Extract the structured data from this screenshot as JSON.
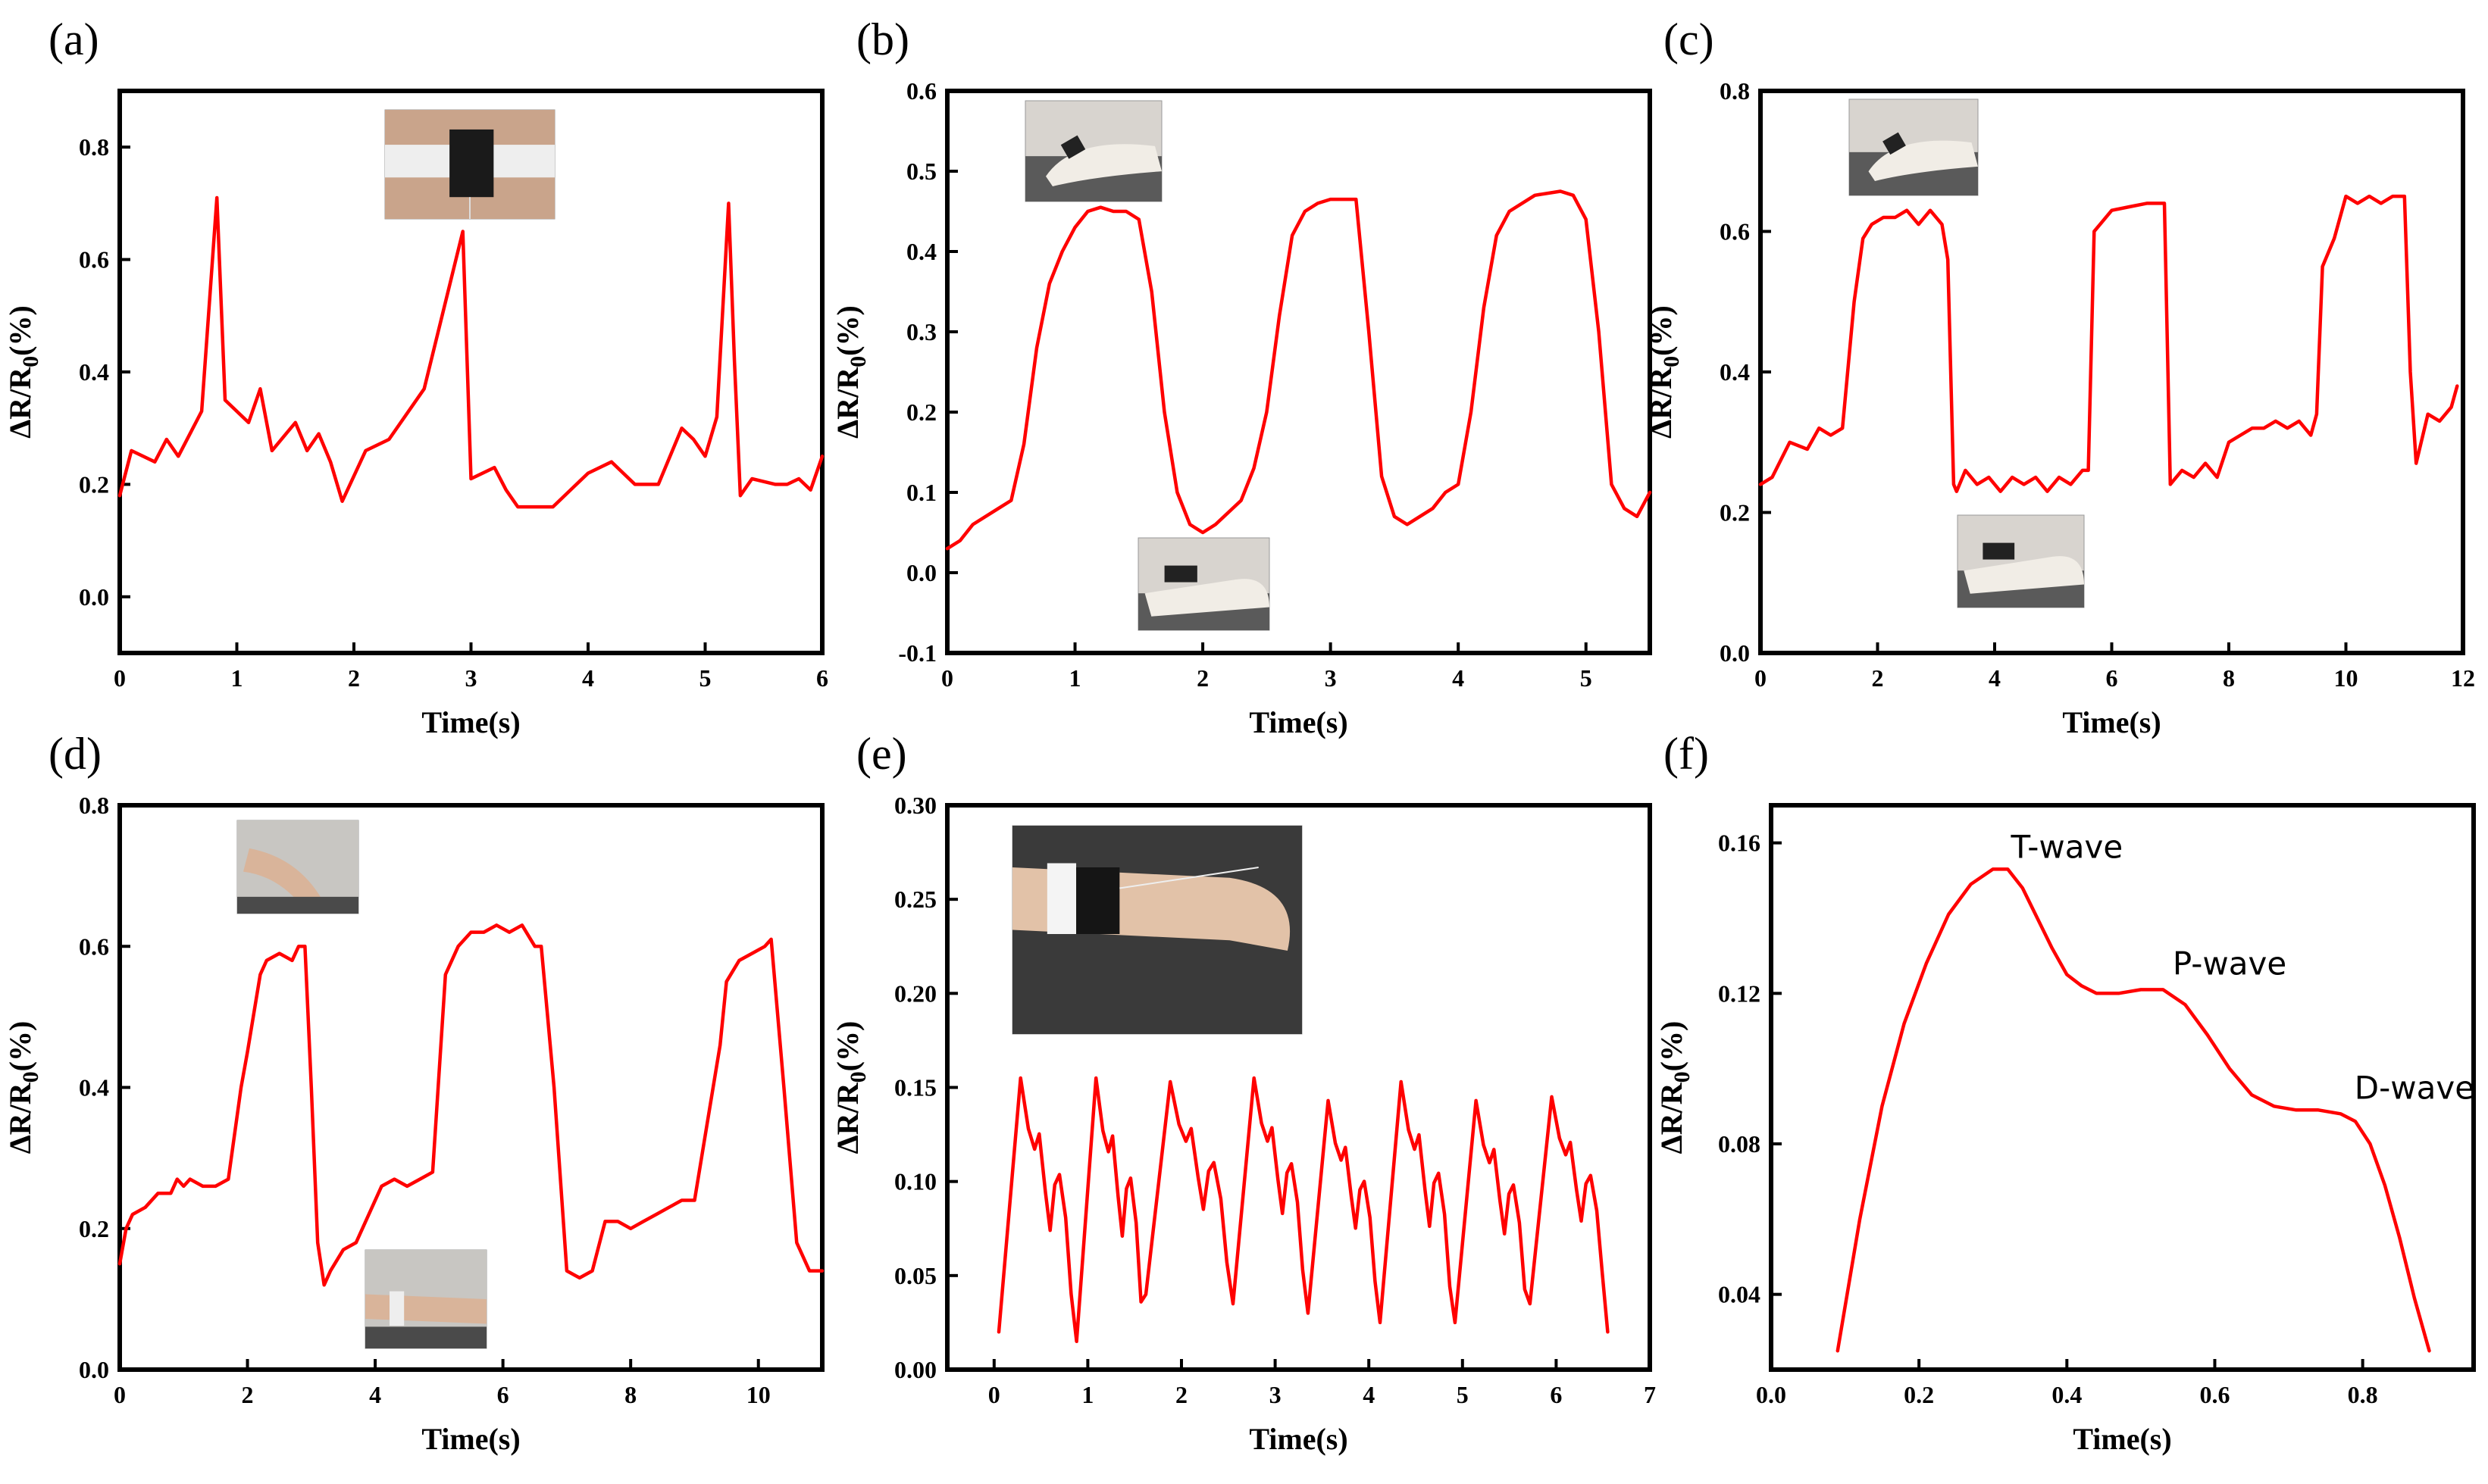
{
  "chart_data": [
    {
      "panel_label": "(a)",
      "type": "line",
      "xlabel": "Time(s)",
      "ylabel_main": "ΔR/R",
      "ylabel_sub": "0",
      "ylabel_unit": "(%)",
      "xlim": [
        0,
        6
      ],
      "ylim": [
        -0.1,
        0.9
      ],
      "xticks": [
        0,
        1,
        2,
        3,
        4,
        5,
        6
      ],
      "yticks": [
        0.0,
        0.2,
        0.4,
        0.6,
        0.8
      ],
      "ytick_labels": [
        "0.0",
        "0.2",
        "0.4",
        "0.6",
        "0.8"
      ],
      "line_color": "#ff0000",
      "inset_photos": [
        "chest-sensor-photo"
      ],
      "x": [
        0,
        0.1,
        0.3,
        0.4,
        0.5,
        0.7,
        0.83,
        0.9,
        1.1,
        1.2,
        1.3,
        1.5,
        1.6,
        1.7,
        1.8,
        1.9,
        2.1,
        2.3,
        2.6,
        2.93,
        3.0,
        3.2,
        3.3,
        3.4,
        3.7,
        4.0,
        4.2,
        4.4,
        4.6,
        4.8,
        4.9,
        5.0,
        5.1,
        5.2,
        5.25,
        5.3,
        5.4,
        5.6,
        5.7,
        5.8,
        5.9,
        6.0
      ],
      "y": [
        0.18,
        0.26,
        0.24,
        0.28,
        0.25,
        0.33,
        0.71,
        0.35,
        0.31,
        0.37,
        0.26,
        0.31,
        0.26,
        0.29,
        0.24,
        0.17,
        0.26,
        0.28,
        0.37,
        0.65,
        0.21,
        0.23,
        0.19,
        0.16,
        0.16,
        0.22,
        0.24,
        0.2,
        0.2,
        0.3,
        0.28,
        0.25,
        0.32,
        0.7,
        0.42,
        0.18,
        0.21,
        0.2,
        0.2,
        0.21,
        0.19,
        0.25
      ]
    },
    {
      "panel_label": "(b)",
      "type": "line",
      "xlabel": "Time(s)",
      "ylabel_main": "ΔR/R",
      "ylabel_sub": "0",
      "ylabel_unit": "(%)",
      "xlim": [
        0,
        5.5
      ],
      "ylim": [
        -0.1,
        0.6
      ],
      "xticks": [
        0,
        1,
        2,
        3,
        4,
        5
      ],
      "yticks": [
        -0.1,
        0.0,
        0.1,
        0.2,
        0.3,
        0.4,
        0.5,
        0.6
      ],
      "ytick_labels": [
        "-0.1",
        "0.0",
        "0.1",
        "0.2",
        "0.3",
        "0.4",
        "0.5",
        "0.6"
      ],
      "line_color": "#ff0000",
      "inset_photos": [
        "finger-bent-photo",
        "finger-straight-photo"
      ],
      "x": [
        0,
        0.1,
        0.2,
        0.4,
        0.5,
        0.6,
        0.7,
        0.8,
        0.9,
        1.0,
        1.1,
        1.2,
        1.3,
        1.4,
        1.5,
        1.6,
        1.7,
        1.8,
        1.9,
        2.0,
        2.1,
        2.3,
        2.4,
        2.5,
        2.6,
        2.7,
        2.8,
        2.9,
        3.0,
        3.2,
        3.3,
        3.4,
        3.5,
        3.6,
        3.7,
        3.8,
        3.9,
        4.0,
        4.1,
        4.2,
        4.3,
        4.4,
        4.6,
        4.8,
        4.9,
        5.0,
        5.1,
        5.2,
        5.3,
        5.4,
        5.5
      ],
      "y": [
        0.03,
        0.04,
        0.06,
        0.08,
        0.09,
        0.16,
        0.28,
        0.36,
        0.4,
        0.43,
        0.45,
        0.455,
        0.45,
        0.45,
        0.44,
        0.35,
        0.2,
        0.1,
        0.06,
        0.05,
        0.06,
        0.09,
        0.13,
        0.2,
        0.32,
        0.42,
        0.45,
        0.46,
        0.465,
        0.465,
        0.3,
        0.12,
        0.07,
        0.06,
        0.07,
        0.08,
        0.1,
        0.11,
        0.2,
        0.33,
        0.42,
        0.45,
        0.47,
        0.475,
        0.47,
        0.44,
        0.3,
        0.11,
        0.08,
        0.07,
        0.1
      ]
    },
    {
      "panel_label": "(c)",
      "type": "line",
      "xlabel": "Time(s)",
      "ylabel_main": "ΔR/R",
      "ylabel_sub": "0",
      "ylabel_unit": "(%)",
      "xlim": [
        0,
        12
      ],
      "ylim": [
        0,
        0.8
      ],
      "xticks": [
        0,
        2,
        4,
        6,
        8,
        10,
        12
      ],
      "yticks": [
        0.0,
        0.2,
        0.4,
        0.6,
        0.8
      ],
      "ytick_labels": [
        "0.0",
        "0.2",
        "0.4",
        "0.6",
        "0.8"
      ],
      "line_color": "#ff0000",
      "inset_photos": [
        "finger-bent-photo",
        "finger-straight-photo"
      ],
      "x": [
        0,
        0.2,
        0.5,
        0.8,
        1.0,
        1.2,
        1.4,
        1.6,
        1.75,
        1.9,
        2.1,
        2.3,
        2.5,
        2.7,
        2.9,
        3.1,
        3.2,
        3.3,
        3.35,
        3.5,
        3.7,
        3.9,
        4.1,
        4.3,
        4.5,
        4.7,
        4.9,
        5.1,
        5.3,
        5.5,
        5.6,
        5.7,
        5.8,
        6.0,
        6.3,
        6.6,
        6.8,
        6.9,
        7.0,
        7.2,
        7.4,
        7.6,
        7.8,
        8.0,
        8.2,
        8.4,
        8.6,
        8.8,
        9.0,
        9.2,
        9.4,
        9.5,
        9.6,
        9.8,
        10.0,
        10.2,
        10.4,
        10.6,
        10.8,
        11.0,
        11.1,
        11.2,
        11.4,
        11.6,
        11.8,
        11.9
      ],
      "y": [
        0.24,
        0.25,
        0.3,
        0.29,
        0.32,
        0.31,
        0.32,
        0.5,
        0.59,
        0.61,
        0.62,
        0.62,
        0.63,
        0.61,
        0.63,
        0.61,
        0.56,
        0.24,
        0.23,
        0.26,
        0.24,
        0.25,
        0.23,
        0.25,
        0.24,
        0.25,
        0.23,
        0.25,
        0.24,
        0.26,
        0.26,
        0.6,
        0.61,
        0.63,
        0.635,
        0.64,
        0.64,
        0.64,
        0.24,
        0.26,
        0.25,
        0.27,
        0.25,
        0.3,
        0.31,
        0.32,
        0.32,
        0.33,
        0.32,
        0.33,
        0.31,
        0.34,
        0.55,
        0.59,
        0.65,
        0.64,
        0.65,
        0.64,
        0.65,
        0.65,
        0.4,
        0.27,
        0.34,
        0.33,
        0.35,
        0.38
      ]
    },
    {
      "panel_label": "(d)",
      "type": "line",
      "xlabel": "Time(s)",
      "ylabel_main": "ΔR/R",
      "ylabel_sub": "0",
      "ylabel_unit": "(%)",
      "xlim": [
        0,
        11
      ],
      "ylim": [
        0,
        0.8
      ],
      "xticks": [
        0,
        2,
        4,
        6,
        8,
        10
      ],
      "yticks": [
        0.0,
        0.2,
        0.4,
        0.6,
        0.8
      ],
      "ytick_labels": [
        "0.0",
        "0.2",
        "0.4",
        "0.6",
        "0.8"
      ],
      "line_color": "#ff0000",
      "inset_photos": [
        "wrist-bent-photo",
        "arm-straight-photo"
      ],
      "x": [
        0,
        0.1,
        0.2,
        0.4,
        0.6,
        0.8,
        0.9,
        1.0,
        1.1,
        1.3,
        1.5,
        1.7,
        1.9,
        2.0,
        2.2,
        2.3,
        2.5,
        2.7,
        2.8,
        2.9,
        3.0,
        3.1,
        3.2,
        3.3,
        3.5,
        3.7,
        3.9,
        4.1,
        4.3,
        4.5,
        4.7,
        4.9,
        5.1,
        5.3,
        5.5,
        5.7,
        5.9,
        6.1,
        6.3,
        6.5,
        6.6,
        6.8,
        7.0,
        7.2,
        7.4,
        7.6,
        7.8,
        8.0,
        8.2,
        8.4,
        8.6,
        8.8,
        9.0,
        9.2,
        9.4,
        9.5,
        9.7,
        9.9,
        10.1,
        10.2,
        10.4,
        10.6,
        10.8,
        11.0
      ],
      "y": [
        0.15,
        0.2,
        0.22,
        0.23,
        0.25,
        0.25,
        0.27,
        0.26,
        0.27,
        0.26,
        0.26,
        0.27,
        0.4,
        0.45,
        0.56,
        0.58,
        0.59,
        0.58,
        0.6,
        0.6,
        0.4,
        0.18,
        0.12,
        0.14,
        0.17,
        0.18,
        0.22,
        0.26,
        0.27,
        0.26,
        0.27,
        0.28,
        0.56,
        0.6,
        0.62,
        0.62,
        0.63,
        0.62,
        0.63,
        0.6,
        0.6,
        0.4,
        0.14,
        0.13,
        0.14,
        0.21,
        0.21,
        0.2,
        0.21,
        0.22,
        0.23,
        0.24,
        0.24,
        0.35,
        0.46,
        0.55,
        0.58,
        0.59,
        0.6,
        0.61,
        0.4,
        0.18,
        0.14,
        0.14
      ]
    },
    {
      "panel_label": "(e)",
      "type": "line",
      "xlabel": "Time(s)",
      "ylabel_main": "ΔR/R",
      "ylabel_sub": "0",
      "ylabel_unit": "(%)",
      "xlim": [
        -0.5,
        7
      ],
      "ylim": [
        0,
        0.3
      ],
      "xticks": [
        0,
        1,
        2,
        3,
        4,
        5,
        6,
        7
      ],
      "yticks": [
        0.0,
        0.05,
        0.1,
        0.15,
        0.2,
        0.25,
        0.3
      ],
      "ytick_labels": [
        "0.00",
        "0.05",
        "0.10",
        "0.15",
        "0.20",
        "0.25",
        "0.30"
      ],
      "line_color": "#ff0000",
      "inset_photos": [
        "wrist-sensor-photo"
      ],
      "beat_starts": [
        0.05,
        0.88,
        1.62,
        2.55,
        3.35,
        4.12,
        4.92,
        5.72
      ],
      "beat_ends": [
        0.88,
        1.62,
        2.55,
        3.35,
        4.12,
        4.92,
        5.72,
        6.55
      ],
      "beat_start_values": [
        0.02,
        0.015,
        0.04,
        0.035,
        0.03,
        0.025,
        0.025,
        0.035
      ],
      "beat_peaks": [
        0.155,
        0.155,
        0.153,
        0.155,
        0.143,
        0.153,
        0.143,
        0.145
      ],
      "end_value": 0.02
    },
    {
      "panel_label": "(f)",
      "type": "line",
      "xlabel": "Time(s)",
      "ylabel_main": "ΔR/R",
      "ylabel_sub": "0",
      "ylabel_unit": "(%)",
      "xlim": [
        0,
        0.95
      ],
      "ylim": [
        0.02,
        0.17
      ],
      "xticks": [
        0.0,
        0.2,
        0.4,
        0.6,
        0.8
      ],
      "yticks": [
        0.04,
        0.08,
        0.12,
        0.16
      ],
      "xtick_labels": [
        "0.0",
        "0.2",
        "0.4",
        "0.6",
        "0.8"
      ],
      "ytick_labels": [
        "0.04",
        "0.08",
        "0.12",
        "0.16"
      ],
      "line_color": "#ff0000",
      "annotations": [
        {
          "text": "T-wave",
          "x": 0.4,
          "y": 0.156
        },
        {
          "text": "P-wave",
          "x": 0.62,
          "y": 0.125
        },
        {
          "text": "D-wave",
          "x": 0.87,
          "y": 0.092
        }
      ],
      "x": [
        0.09,
        0.12,
        0.15,
        0.18,
        0.21,
        0.24,
        0.27,
        0.3,
        0.32,
        0.34,
        0.36,
        0.38,
        0.4,
        0.42,
        0.44,
        0.47,
        0.5,
        0.53,
        0.56,
        0.59,
        0.62,
        0.65,
        0.68,
        0.71,
        0.74,
        0.77,
        0.79,
        0.81,
        0.83,
        0.85,
        0.87,
        0.89
      ],
      "y": [
        0.025,
        0.06,
        0.09,
        0.112,
        0.128,
        0.141,
        0.149,
        0.153,
        0.153,
        0.148,
        0.14,
        0.132,
        0.125,
        0.122,
        0.12,
        0.12,
        0.121,
        0.121,
        0.117,
        0.109,
        0.1,
        0.093,
        0.09,
        0.089,
        0.089,
        0.088,
        0.086,
        0.08,
        0.069,
        0.055,
        0.039,
        0.025
      ]
    }
  ]
}
